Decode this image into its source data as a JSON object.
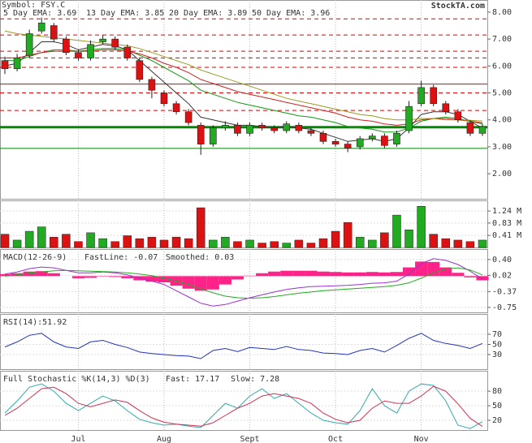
{
  "chart_data": [
    {
      "type": "candlestick",
      "title": "Symbol: FSY.C",
      "source": "StockTA.com",
      "categories": [
        null,
        null,
        null,
        null,
        null,
        null,
        "Jul",
        null,
        null,
        null,
        null,
        null,
        null,
        "Aug",
        null,
        null,
        null,
        null,
        null,
        null,
        "Sept",
        null,
        null,
        null,
        null,
        null,
        null,
        "Oct",
        null,
        null,
        null,
        null,
        null,
        null,
        "Nov",
        null,
        null,
        null,
        null,
        null
      ],
      "open": [
        6.2,
        5.9,
        6.4,
        7.3,
        7.5,
        7.0,
        6.5,
        6.3,
        6.9,
        7.0,
        6.7,
        6.2,
        5.5,
        5.0,
        4.6,
        4.3,
        3.8,
        3.1,
        3.7,
        3.8,
        3.5,
        3.8,
        3.7,
        3.6,
        3.8,
        3.6,
        3.5,
        3.2,
        3.1,
        3.0,
        3.3,
        3.4,
        3.1,
        3.6,
        4.6,
        5.2,
        4.6,
        4.3,
        3.9,
        3.5
      ],
      "high": [
        6.35,
        6.45,
        7.35,
        7.8,
        7.6,
        7.1,
        6.6,
        6.95,
        7.15,
        7.1,
        6.8,
        6.3,
        5.6,
        5.1,
        4.7,
        4.4,
        3.9,
        3.8,
        3.95,
        3.9,
        3.9,
        3.9,
        3.8,
        3.95,
        3.9,
        3.7,
        3.6,
        3.3,
        3.2,
        3.4,
        3.5,
        3.5,
        3.6,
        4.7,
        5.45,
        5.3,
        4.7,
        4.4,
        4.0,
        3.85
      ],
      "low": [
        5.7,
        5.8,
        6.3,
        7.2,
        6.9,
        6.4,
        6.2,
        6.2,
        6.8,
        6.6,
        6.2,
        5.4,
        4.8,
        4.5,
        4.2,
        3.8,
        2.7,
        3.0,
        3.6,
        3.4,
        3.4,
        3.6,
        3.5,
        3.5,
        3.5,
        3.4,
        3.1,
        3.0,
        2.8,
        2.9,
        3.2,
        2.95,
        3.0,
        3.5,
        4.5,
        4.5,
        4.2,
        3.9,
        3.4,
        3.4
      ],
      "close": [
        5.9,
        6.3,
        7.2,
        7.6,
        7.0,
        6.5,
        6.3,
        6.8,
        7.0,
        6.7,
        6.3,
        5.5,
        5.1,
        4.6,
        4.3,
        3.9,
        3.1,
        3.7,
        3.8,
        3.5,
        3.8,
        3.7,
        3.6,
        3.85,
        3.6,
        3.5,
        3.2,
        3.1,
        2.95,
        3.3,
        3.4,
        3.05,
        3.5,
        4.5,
        5.2,
        4.6,
        4.3,
        4.0,
        3.5,
        3.75
      ],
      "up_color": "#22aa22",
      "down_color": "#dd1111",
      "series": [
        {
          "name": "5 Day EMA: 3.69",
          "color": "#333333",
          "values": [
            6.0,
            6.1,
            6.5,
            6.9,
            6.9,
            6.8,
            6.6,
            6.7,
            6.8,
            6.75,
            6.6,
            6.2,
            5.8,
            5.4,
            5.0,
            4.6,
            4.1,
            4.0,
            3.9,
            3.8,
            3.8,
            3.75,
            3.7,
            3.75,
            3.7,
            3.65,
            3.5,
            3.35,
            3.2,
            3.25,
            3.3,
            3.2,
            3.3,
            3.7,
            4.2,
            4.3,
            4.3,
            4.2,
            3.95,
            3.69
          ]
        },
        {
          "name": "13 Day EMA: 3.85",
          "color": "#119911",
          "values": [
            6.2,
            6.2,
            6.35,
            6.5,
            6.6,
            6.6,
            6.55,
            6.6,
            6.65,
            6.65,
            6.6,
            6.4,
            6.2,
            5.95,
            5.7,
            5.45,
            5.1,
            4.95,
            4.8,
            4.65,
            4.55,
            4.45,
            4.35,
            4.25,
            4.15,
            4.1,
            4.0,
            3.9,
            3.75,
            3.7,
            3.65,
            3.55,
            3.55,
            3.7,
            3.95,
            4.05,
            4.1,
            4.05,
            3.95,
            3.85
          ]
        },
        {
          "name": "20 Day EMA: 3.89",
          "color": "#cc2222",
          "values": [
            6.3,
            6.3,
            6.4,
            6.5,
            6.55,
            6.55,
            6.55,
            6.55,
            6.6,
            6.6,
            6.55,
            6.45,
            6.3,
            6.1,
            5.95,
            5.75,
            5.5,
            5.35,
            5.2,
            5.05,
            4.95,
            4.85,
            4.75,
            4.65,
            4.55,
            4.45,
            4.35,
            4.25,
            4.1,
            4.0,
            3.95,
            3.85,
            3.8,
            3.85,
            4.0,
            4.05,
            4.05,
            4.0,
            3.95,
            3.89
          ]
        },
        {
          "name": "50 Day EMA: 3.96",
          "color": "#999922",
          "values": [
            7.3,
            7.2,
            7.15,
            7.1,
            7.05,
            7.0,
            6.95,
            6.9,
            6.85,
            6.8,
            6.75,
            6.65,
            6.5,
            6.35,
            6.2,
            6.05,
            5.85,
            5.7,
            5.55,
            5.4,
            5.25,
            5.1,
            4.95,
            4.8,
            4.7,
            4.6,
            4.5,
            4.4,
            4.3,
            4.2,
            4.15,
            4.05,
            4.0,
            4.0,
            4.05,
            4.05,
            4.0,
            4.0,
            3.98,
            3.96
          ]
        }
      ],
      "levels": [
        {
          "value": 7.75,
          "color": "#dd0000",
          "dashed": true,
          "width": 1
        },
        {
          "value": 7.15,
          "color": "#dd0000",
          "dashed": true,
          "width": 1
        },
        {
          "value": 6.55,
          "color": "#dd0000",
          "dashed": true,
          "width": 1
        },
        {
          "value": 6.3,
          "color": "#dd0000",
          "dashed": true,
          "width": 1
        },
        {
          "value": 5.95,
          "color": "#dd0000",
          "dashed": true,
          "width": 1
        },
        {
          "value": 5.33,
          "color": "#dd0000",
          "dashed": false,
          "width": 1
        },
        {
          "value": 5.0,
          "color": "#dd0000",
          "dashed": true,
          "width": 1
        },
        {
          "value": 4.35,
          "color": "#dd0000",
          "dashed": true,
          "width": 1
        },
        {
          "value": 3.73,
          "color": "#008800",
          "dashed": false,
          "width": 3
        },
        {
          "value": 2.94,
          "color": "#008800",
          "dashed": false,
          "width": 1
        }
      ],
      "ylim": [
        1.07,
        8.45
      ],
      "yticks": [
        {
          "value": 8,
          "label": "8.00"
        },
        {
          "value": 7,
          "label": "7.00"
        },
        {
          "value": 6,
          "label": "6.00"
        },
        {
          "value": 5,
          "label": "5.00"
        },
        {
          "value": 4,
          "label": "4.00"
        },
        {
          "value": 3,
          "label": "3.00"
        },
        {
          "value": 2,
          "label": "2.00"
        }
      ]
    },
    {
      "type": "volume",
      "values": [
        0.45,
        0.25,
        0.55,
        0.7,
        0.35,
        0.45,
        0.2,
        0.5,
        0.3,
        0.2,
        0.4,
        0.3,
        0.35,
        0.25,
        0.35,
        0.3,
        1.35,
        0.25,
        0.35,
        0.2,
        0.25,
        0.15,
        0.2,
        0.15,
        0.25,
        0.15,
        0.3,
        0.55,
        0.85,
        0.35,
        0.25,
        0.5,
        1.1,
        0.6,
        1.4,
        0.45,
        0.3,
        0.25,
        0.2,
        0.25
      ],
      "ylim": [
        0,
        1.6
      ],
      "yticks": [
        {
          "value": 1.24,
          "label": "1.24 M"
        },
        {
          "value": 0.83,
          "label": "0.83 M"
        },
        {
          "value": 0.41,
          "label": "0.41 M"
        }
      ]
    },
    {
      "type": "macd",
      "title": "MACD(12-26-9)",
      "histogram": {
        "color": "#ff2288",
        "values": [
          0.05,
          0.07,
          0.11,
          0.12,
          0.07,
          0.0,
          -0.05,
          -0.04,
          -0.01,
          -0.02,
          -0.05,
          -0.1,
          -0.13,
          -0.15,
          -0.23,
          -0.3,
          -0.35,
          -0.32,
          -0.2,
          -0.08,
          0.01,
          0.07,
          0.11,
          0.13,
          0.13,
          0.13,
          0.11,
          0.1,
          0.09,
          0.09,
          0.1,
          0.09,
          0.1,
          0.21,
          0.35,
          0.34,
          0.21,
          0.08,
          -0.03,
          -0.1
        ]
      },
      "series": [
        {
          "name": "FastLine: -0.07",
          "color": "#9933cc",
          "values": [
            0.05,
            0.1,
            0.18,
            0.22,
            0.2,
            0.14,
            0.08,
            0.08,
            0.1,
            0.08,
            0.03,
            -0.05,
            -0.12,
            -0.2,
            -0.35,
            -0.5,
            -0.65,
            -0.72,
            -0.68,
            -0.6,
            -0.52,
            -0.45,
            -0.38,
            -0.32,
            -0.28,
            -0.25,
            -0.24,
            -0.23,
            -0.22,
            -0.2,
            -0.17,
            -0.16,
            -0.12,
            0.05,
            0.3,
            0.42,
            0.38,
            0.28,
            0.12,
            -0.07
          ]
        },
        {
          "name": "Smoothed: 0.03",
          "color": "#22aa22",
          "values": [
            0.0,
            0.03,
            0.07,
            0.1,
            0.13,
            0.14,
            0.13,
            0.12,
            0.11,
            0.1,
            0.08,
            0.05,
            0.01,
            -0.05,
            -0.12,
            -0.2,
            -0.3,
            -0.4,
            -0.48,
            -0.52,
            -0.53,
            -0.52,
            -0.49,
            -0.45,
            -0.41,
            -0.38,
            -0.35,
            -0.33,
            -0.31,
            -0.29,
            -0.27,
            -0.25,
            -0.22,
            -0.16,
            -0.05,
            0.08,
            0.17,
            0.2,
            0.15,
            0.03
          ]
        }
      ],
      "ylim": [
        -0.87,
        0.65
      ],
      "yticks": [
        {
          "value": 0.4,
          "label": "0.40"
        },
        {
          "value": 0.02,
          "label": "0.02"
        },
        {
          "value": -0.37,
          "label": "-0.37"
        },
        {
          "value": -0.75,
          "label": "-0.75"
        }
      ]
    },
    {
      "type": "line",
      "title": "RSI(14):51.92",
      "series": [
        {
          "color": "#2233bb",
          "values": [
            45,
            55,
            68,
            72,
            55,
            45,
            42,
            55,
            58,
            50,
            44,
            35,
            32,
            30,
            28,
            27,
            22,
            38,
            42,
            36,
            44,
            42,
            40,
            46,
            40,
            38,
            33,
            32,
            30,
            38,
            42,
            35,
            48,
            62,
            72,
            58,
            52,
            48,
            42,
            51.92
          ]
        }
      ],
      "ylim": [
        1.2,
        110
      ],
      "yticks": [
        70,
        50,
        30
      ]
    },
    {
      "type": "line",
      "title": "Full Stochastic %K(14,3) %D(3)",
      "series": [
        {
          "name": "Fast: 17.17",
          "color": "#33aaaa",
          "values": [
            35,
            60,
            88,
            95,
            80,
            55,
            40,
            55,
            70,
            60,
            40,
            22,
            15,
            10,
            12,
            8,
            5,
            30,
            55,
            45,
            70,
            85,
            65,
            75,
            55,
            35,
            20,
            15,
            12,
            40,
            85,
            50,
            35,
            80,
            95,
            92,
            60,
            10,
            3,
            17.17
          ]
        },
        {
          "name": "Slow: 7.28",
          "color": "#cc3355",
          "values": [
            30,
            45,
            65,
            85,
            88,
            75,
            55,
            48,
            55,
            62,
            57,
            40,
            25,
            16,
            12,
            10,
            8,
            15,
            30,
            45,
            55,
            70,
            75,
            70,
            65,
            55,
            35,
            22,
            15,
            20,
            45,
            60,
            55,
            55,
            70,
            90,
            80,
            54,
            24,
            7.28
          ]
        }
      ],
      "ylim": [
        0,
        122
      ],
      "yticks": [
        80,
        50,
        20
      ]
    }
  ]
}
